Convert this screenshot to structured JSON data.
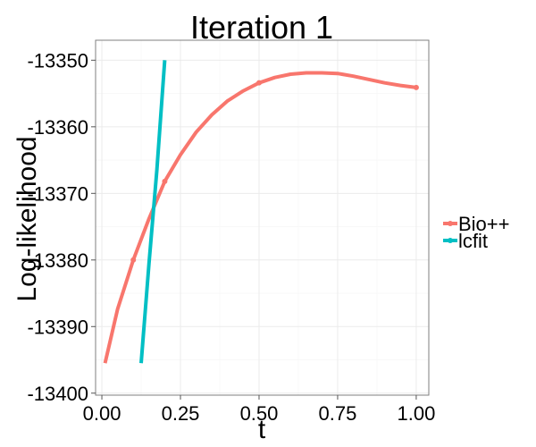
{
  "chart_data": {
    "type": "line",
    "title": "Iteration 1",
    "xlabel": "t",
    "ylabel": "Log-likelihood",
    "xlim": [
      -0.02,
      1.04
    ],
    "ylim": [
      -13400.3,
      -13347.0
    ],
    "x_ticks": [
      0.0,
      0.25,
      0.5,
      0.75,
      1.0
    ],
    "x_tick_labels": [
      "0.00",
      "0.25",
      "0.50",
      "0.75",
      "1.00"
    ],
    "y_ticks": [
      -13350,
      -13360,
      -13370,
      -13380,
      -13390,
      -13400
    ],
    "y_tick_labels": [
      "-13350",
      "-13360",
      "-13370",
      "-13380",
      "-13390",
      "-13400"
    ],
    "grid": true,
    "legend": "right",
    "series": [
      {
        "name": "Bio++",
        "color": "#F8766D",
        "points": [
          {
            "x": 0.01,
            "y": -13395.5
          },
          {
            "x": 0.05,
            "y": -13387.4
          },
          {
            "x": 0.1,
            "y": -13380.0
          },
          {
            "x": 0.15,
            "y": -13373.8
          },
          {
            "x": 0.2,
            "y": -13368.2
          },
          {
            "x": 0.25,
            "y": -13364.2
          },
          {
            "x": 0.3,
            "y": -13360.8
          },
          {
            "x": 0.35,
            "y": -13358.2
          },
          {
            "x": 0.4,
            "y": -13356.1
          },
          {
            "x": 0.45,
            "y": -13354.6
          },
          {
            "x": 0.5,
            "y": -13353.4
          },
          {
            "x": 0.55,
            "y": -13352.6
          },
          {
            "x": 0.6,
            "y": -13352.1
          },
          {
            "x": 0.65,
            "y": -13351.9
          },
          {
            "x": 0.7,
            "y": -13351.9
          },
          {
            "x": 0.75,
            "y": -13352.0
          },
          {
            "x": 0.8,
            "y": -13352.4
          },
          {
            "x": 0.85,
            "y": -13352.9
          },
          {
            "x": 0.9,
            "y": -13353.4
          },
          {
            "x": 0.95,
            "y": -13353.8
          },
          {
            "x": 1.0,
            "y": -13354.1
          }
        ],
        "markers": [
          {
            "x": 0.1,
            "y": -13380.0
          },
          {
            "x": 0.2,
            "y": -13368.2
          },
          {
            "x": 0.5,
            "y": -13353.4
          },
          {
            "x": 1.0,
            "y": -13354.1
          }
        ]
      },
      {
        "name": "lcfit",
        "color": "#00BFC4",
        "points": [
          {
            "x": 0.125,
            "y": -13395.5
          },
          {
            "x": 0.15,
            "y": -13380.5
          },
          {
            "x": 0.175,
            "y": -13366.5
          },
          {
            "x": 0.2,
            "y": -13350.0
          }
        ],
        "markers": []
      }
    ]
  }
}
